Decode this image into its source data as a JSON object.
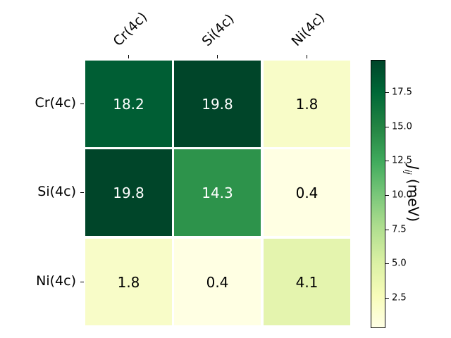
{
  "chart_data": {
    "type": "heatmap",
    "title": "",
    "xlabel": "",
    "ylabel": "",
    "x_categories": [
      "Cr(4c)",
      "Si(4c)",
      "Ni(4c)"
    ],
    "y_categories": [
      "Cr(4c)",
      "Si(4c)",
      "Ni(4c)"
    ],
    "values": [
      [
        18.2,
        19.8,
        1.8
      ],
      [
        19.8,
        14.3,
        0.4
      ],
      [
        1.8,
        0.4,
        4.1
      ]
    ],
    "value_labels": [
      [
        "18.2",
        "19.8",
        "1.8"
      ],
      [
        "19.8",
        "14.3",
        "0.4"
      ],
      [
        "1.8",
        "0.4",
        "4.1"
      ]
    ],
    "colormap": "YlGn",
    "colorbar": {
      "label": "J_ij (meV)",
      "range": [
        0.4,
        19.8
      ],
      "ticks": [
        "2.5",
        "5.0",
        "7.5",
        "10.0",
        "12.5",
        "15.0",
        "17.5"
      ]
    },
    "cell_colors": [
      [
        "#005e34",
        "#004529",
        "#f8fcc8"
      ],
      [
        "#004529",
        "#2d934b",
        "#ffffe3"
      ],
      [
        "#f8fcc8",
        "#ffffe3",
        "#e4f4ae"
      ]
    ],
    "text_colors": [
      [
        "#ffffff",
        "#ffffff",
        "#000000"
      ],
      [
        "#ffffff",
        "#ffffff",
        "#000000"
      ],
      [
        "#000000",
        "#000000",
        "#000000"
      ]
    ]
  }
}
